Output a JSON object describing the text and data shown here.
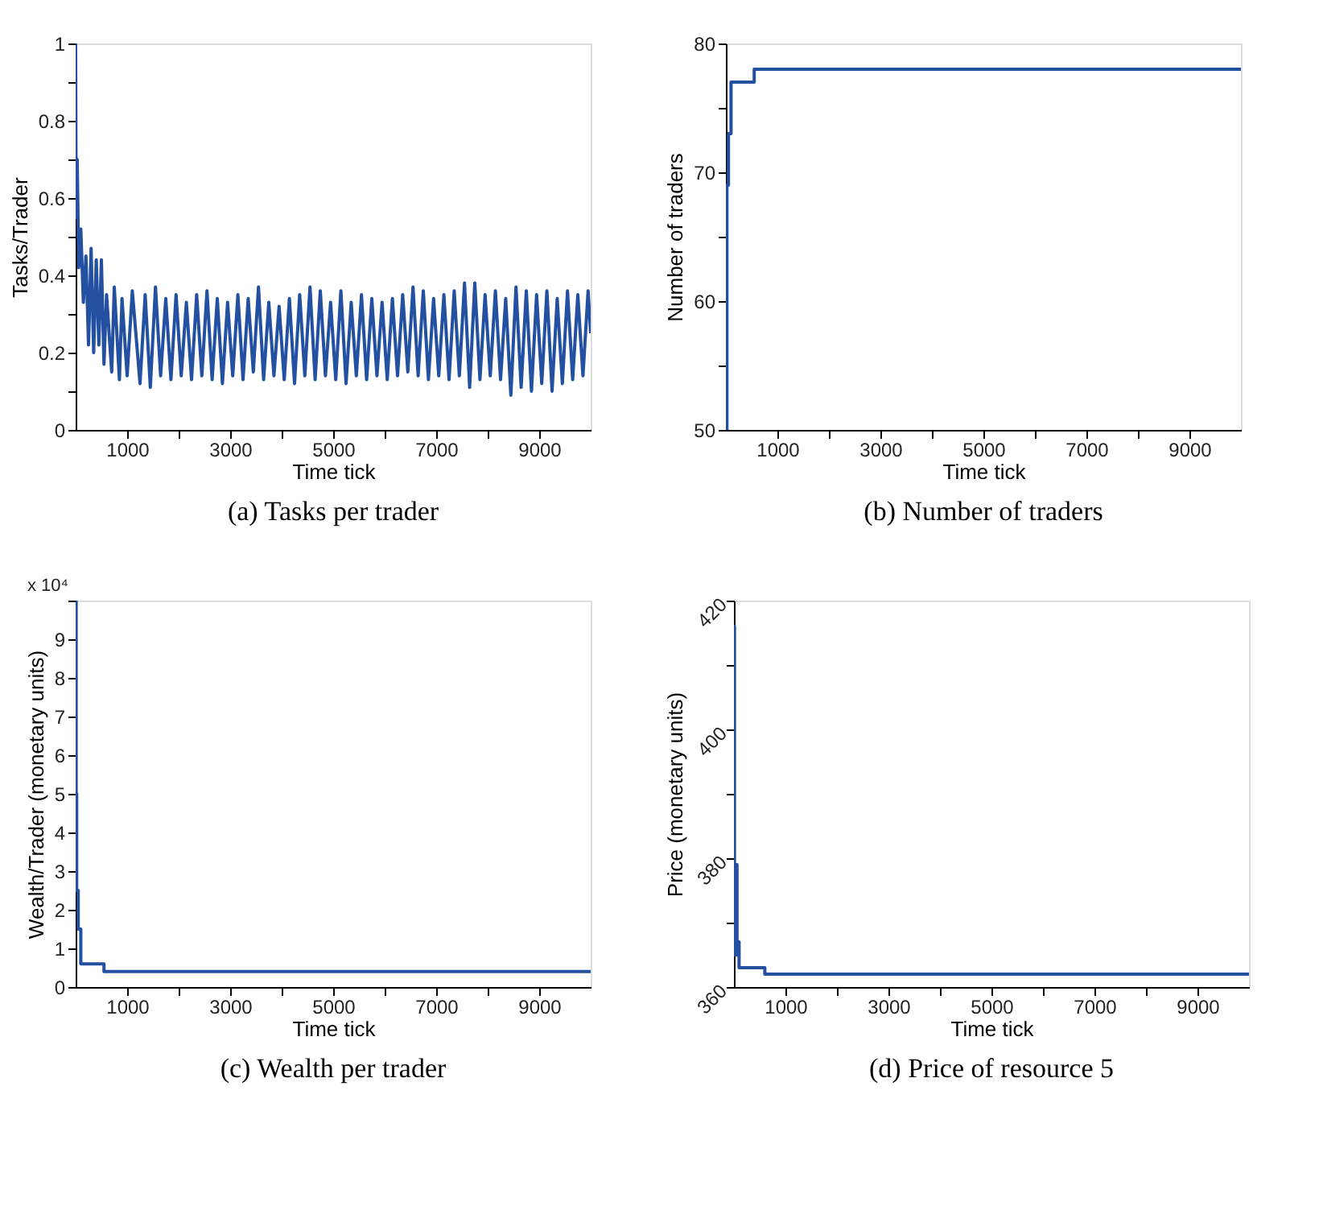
{
  "chart_data": [
    {
      "type": "line",
      "title": "(a)  Tasks per trader",
      "xlabel": "Time tick",
      "ylabel": "Tasks/Trader",
      "xlim": [
        0,
        10000
      ],
      "ylim": [
        0,
        1
      ],
      "xticks": [
        1000,
        {
          "value": 2000,
          "label": null
        },
        3000,
        {
          "value": 4000,
          "label": null
        },
        5000,
        {
          "value": 6000,
          "label": null
        },
        7000,
        {
          "value": 8000,
          "label": null
        },
        9000
      ],
      "yticks": [
        0,
        {
          "value": 0.1,
          "label": null
        },
        0.2,
        {
          "value": 0.3,
          "label": null
        },
        0.4,
        {
          "value": 0.5,
          "label": null
        },
        0.6,
        {
          "value": 0.7,
          "label": null
        },
        0.8,
        {
          "value": 0.9,
          "label": null
        },
        1
      ],
      "x": [
        0,
        10,
        30,
        60,
        100,
        150,
        200,
        250,
        300,
        350,
        400,
        450,
        500,
        550,
        600,
        700,
        750,
        850,
        900,
        1000,
        1100,
        1250,
        1350,
        1450,
        1550,
        1650,
        1750,
        1850,
        1950,
        2050,
        2150,
        2250,
        2350,
        2450,
        2550,
        2650,
        2750,
        2850,
        2950,
        3050,
        3150,
        3250,
        3350,
        3450,
        3550,
        3650,
        3750,
        3850,
        3950,
        4050,
        4150,
        4250,
        4350,
        4450,
        4550,
        4650,
        4750,
        4850,
        4950,
        5050,
        5150,
        5250,
        5350,
        5450,
        5550,
        5650,
        5750,
        5850,
        5950,
        6050,
        6150,
        6250,
        6350,
        6450,
        6550,
        6650,
        6750,
        6850,
        6950,
        7050,
        7150,
        7250,
        7350,
        7450,
        7550,
        7650,
        7750,
        7850,
        7950,
        8050,
        8150,
        8250,
        8350,
        8450,
        8550,
        8650,
        8750,
        8850,
        8950,
        9050,
        9150,
        9250,
        9350,
        9450,
        9550,
        9650,
        9750,
        9850,
        9950,
        10000
      ],
      "series": [
        {
          "color": "#2350a0",
          "values": [
            1.0,
            0.55,
            0.7,
            0.42,
            0.52,
            0.33,
            0.45,
            0.22,
            0.47,
            0.2,
            0.44,
            0.22,
            0.44,
            0.17,
            0.35,
            0.15,
            0.37,
            0.13,
            0.34,
            0.14,
            0.36,
            0.12,
            0.35,
            0.11,
            0.37,
            0.14,
            0.34,
            0.13,
            0.35,
            0.14,
            0.33,
            0.13,
            0.35,
            0.14,
            0.36,
            0.13,
            0.34,
            0.12,
            0.33,
            0.14,
            0.35,
            0.13,
            0.34,
            0.15,
            0.37,
            0.13,
            0.33,
            0.14,
            0.32,
            0.13,
            0.34,
            0.12,
            0.35,
            0.14,
            0.37,
            0.13,
            0.36,
            0.14,
            0.33,
            0.13,
            0.36,
            0.12,
            0.33,
            0.14,
            0.35,
            0.13,
            0.34,
            0.14,
            0.33,
            0.13,
            0.34,
            0.14,
            0.35,
            0.15,
            0.37,
            0.14,
            0.36,
            0.13,
            0.34,
            0.14,
            0.35,
            0.13,
            0.36,
            0.14,
            0.38,
            0.11,
            0.38,
            0.13,
            0.35,
            0.14,
            0.36,
            0.13,
            0.34,
            0.09,
            0.37,
            0.11,
            0.36,
            0.1,
            0.35,
            0.12,
            0.36,
            0.1,
            0.34,
            0.12,
            0.36,
            0.13,
            0.35,
            0.14,
            0.36,
            0.25
          ]
        }
      ]
    },
    {
      "type": "step",
      "title": "(b)  Number of traders",
      "xlabel": "Time tick",
      "ylabel": "Number of traders",
      "xlim": [
        0,
        10000
      ],
      "ylim": [
        50,
        80
      ],
      "xticks": [
        1000,
        {
          "value": 2000,
          "label": null
        },
        3000,
        {
          "value": 4000,
          "label": null
        },
        5000,
        {
          "value": 6000,
          "label": null
        },
        7000,
        {
          "value": 8000,
          "label": null
        },
        9000
      ],
      "yticks": [
        50,
        {
          "value": 55,
          "label": null
        },
        60,
        {
          "value": 65,
          "label": null
        },
        70,
        {
          "value": 75,
          "label": null
        },
        80
      ],
      "x": [
        0,
        20,
        50,
        100,
        550,
        10000
      ],
      "series": [
        {
          "color": "#2350a0",
          "values": [
            50,
            69,
            73,
            77,
            78,
            78
          ]
        }
      ]
    },
    {
      "type": "step",
      "title": "(c)  Wealth per trader",
      "xlabel": "Time tick",
      "ylabel": "Wealth/Trader (monetary units)",
      "annotations": [
        "x 10⁴"
      ],
      "xlim": [
        0,
        10000
      ],
      "ylim": [
        0,
        10
      ],
      "xticks": [
        1000,
        {
          "value": 2000,
          "label": null
        },
        3000,
        {
          "value": 4000,
          "label": null
        },
        5000,
        {
          "value": 6000,
          "label": null
        },
        7000,
        {
          "value": 8000,
          "label": null
        },
        9000
      ],
      "yticks": [
        0,
        1,
        2,
        3,
        4,
        5,
        6,
        7,
        8,
        9,
        {
          "value": 10,
          "label": null
        }
      ],
      "x": [
        0,
        10,
        20,
        50,
        100,
        550,
        10000
      ],
      "series": [
        {
          "color": "#2350a0",
          "values": [
            10,
            5,
            2.5,
            1.5,
            0.6,
            0.4,
            0.4
          ]
        }
      ]
    },
    {
      "type": "step",
      "title": "(d)  Price of resource 5",
      "xlabel": "Time tick",
      "ylabel": "Price (monetary units)",
      "xlim": [
        0,
        10000
      ],
      "ylim": [
        360,
        420
      ],
      "xticks": [
        1000,
        {
          "value": 2000,
          "label": null
        },
        3000,
        {
          "value": 4000,
          "label": null
        },
        5000,
        {
          "value": 6000,
          "label": null
        },
        7000,
        {
          "value": 8000,
          "label": null
        },
        9000
      ],
      "yticks": [
        360,
        {
          "value": 370,
          "label": null
        },
        380,
        {
          "value": 390,
          "label": null
        },
        400,
        {
          "value": 410,
          "label": null
        },
        420
      ],
      "x": [
        0,
        10,
        20,
        40,
        60,
        80,
        100,
        600,
        10000
      ],
      "series": [
        {
          "color": "#2350a0",
          "values": [
            416,
            372,
            365,
            379,
            365,
            367,
            363,
            362,
            362
          ]
        }
      ]
    }
  ]
}
